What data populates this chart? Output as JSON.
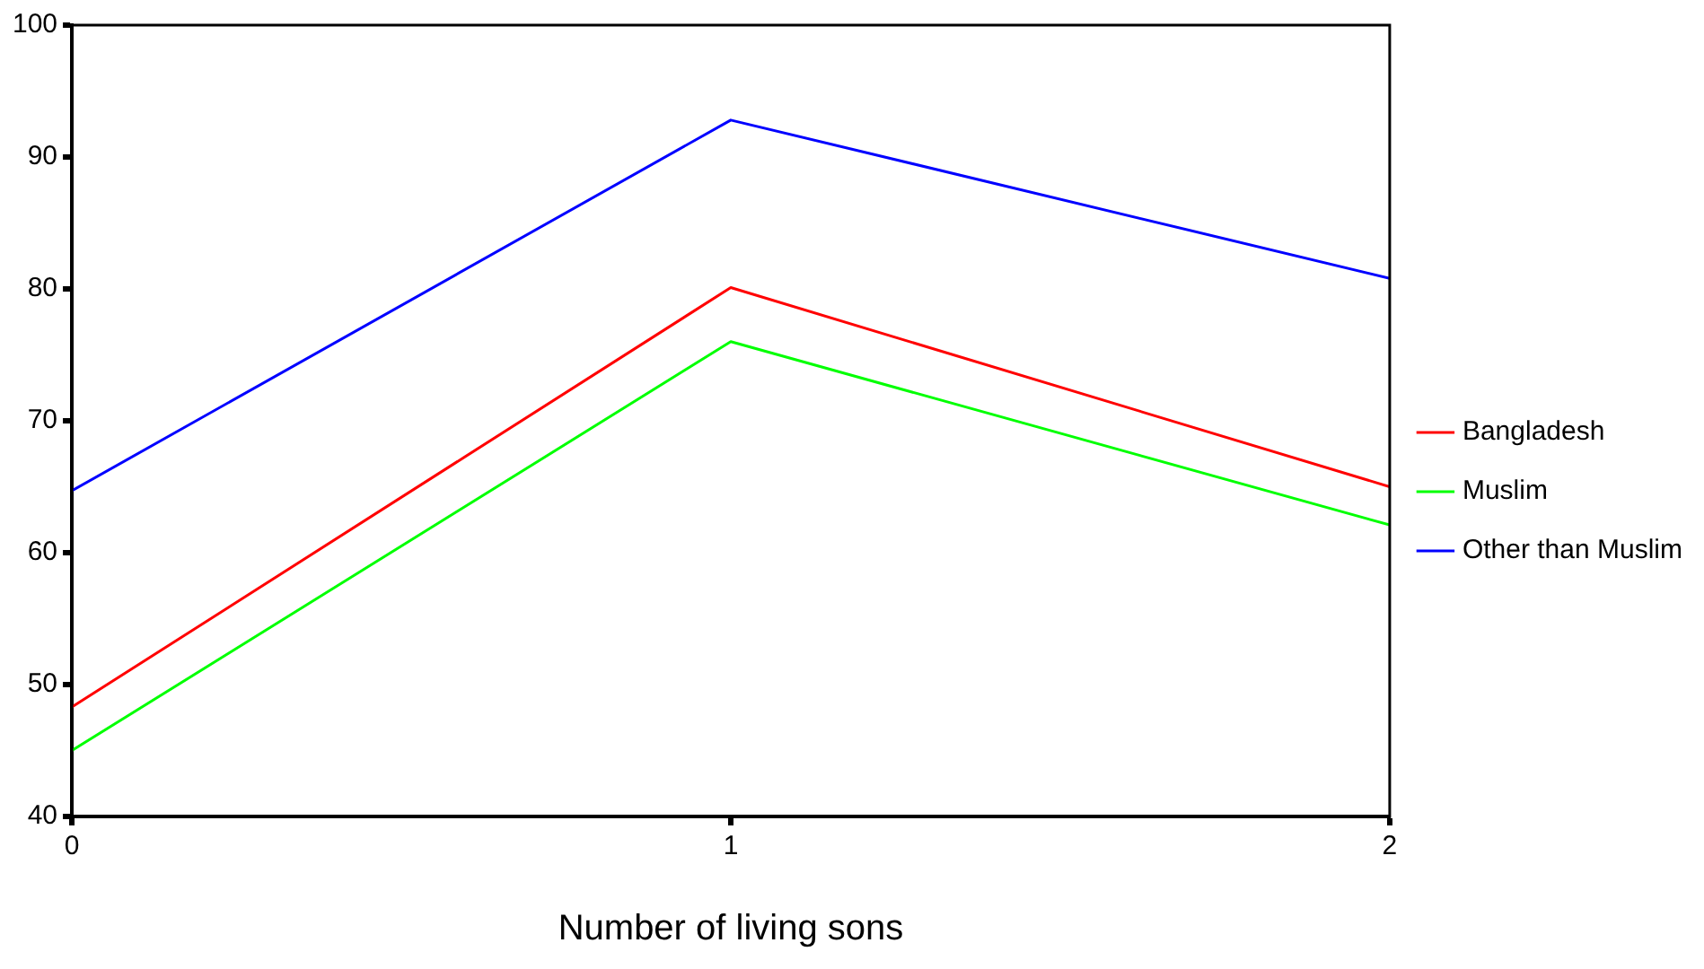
{
  "chart_data": {
    "type": "line",
    "xlabel": "Number of living sons",
    "x": [
      0,
      1,
      2
    ],
    "series": [
      {
        "name": "Bangladesh",
        "color": "#ff0000",
        "values": [
          48.3,
          80.1,
          65.0
        ]
      },
      {
        "name": "Muslim",
        "color": "#00ff00",
        "values": [
          45.0,
          76.0,
          62.1
        ]
      },
      {
        "name": "Other than Muslim",
        "color": "#0000ff",
        "values": [
          64.7,
          92.8,
          80.8
        ]
      }
    ],
    "xlim": [
      0,
      2
    ],
    "xticks": [
      0,
      1,
      2
    ],
    "ylim": [
      40,
      100
    ],
    "yticks": [
      40,
      50,
      60,
      70,
      80,
      90,
      100
    ],
    "grid": false,
    "legend": "right",
    "marker": "none",
    "line_style": "solid"
  }
}
